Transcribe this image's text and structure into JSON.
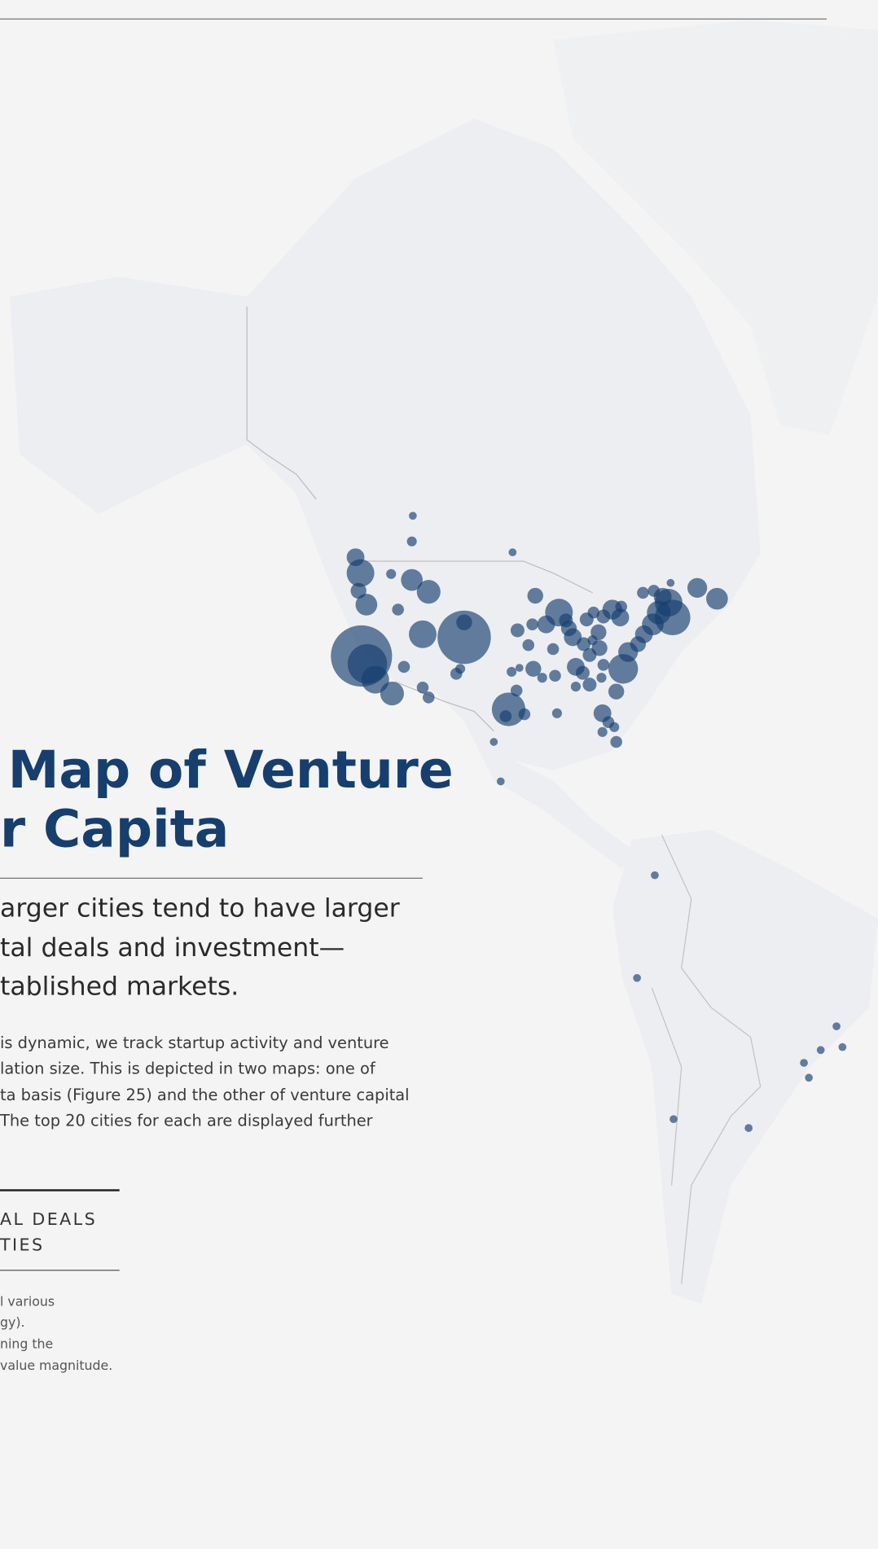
{
  "article": {
    "title": [
      "Map of Venture",
      "r Capita"
    ],
    "subtitle": [
      "arger cities tend to have larger",
      "tal deals and investment—",
      "tablished markets."
    ],
    "body": [
      "is dynamic, we track startup activity and venture",
      "lation size. This is depicted in two maps: one of",
      "ta basis (Figure 25) and the other of venture capital",
      "The top 20 cities for each are displayed further"
    ],
    "sidebar": {
      "heading": [
        "AL DEALS",
        "TIES"
      ],
      "note": [
        "l various",
        "gy).",
        "ning the",
        "value magnitude."
      ]
    }
  }
}
